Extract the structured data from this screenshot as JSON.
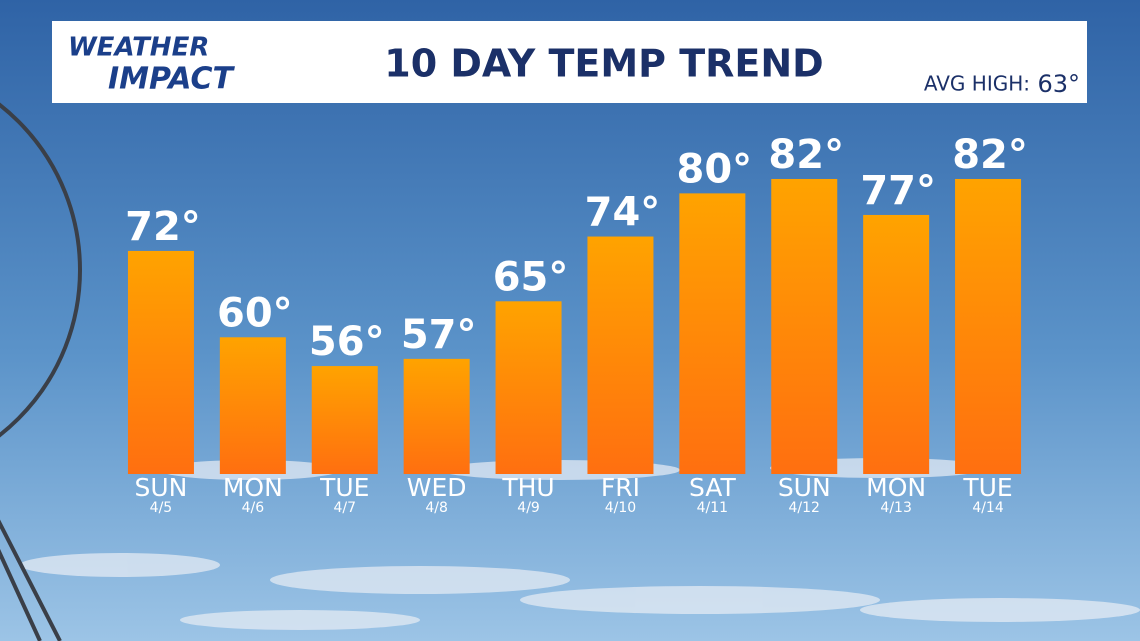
{
  "brand": {
    "line1": "WEATHER",
    "line2": "IMPACT"
  },
  "avg_label": "AVG HIGH:",
  "avg_value": "63°",
  "chart_data": {
    "type": "bar",
    "title": "10 DAY TEMP TREND",
    "categories": [
      "SUN",
      "MON",
      "TUE",
      "WED",
      "THU",
      "FRI",
      "SAT",
      "SUN",
      "MON",
      "TUE"
    ],
    "dates": [
      "4/5",
      "4/6",
      "4/7",
      "4/8",
      "4/9",
      "4/10",
      "4/11",
      "4/12",
      "4/13",
      "4/14"
    ],
    "values": [
      72,
      60,
      56,
      57,
      65,
      74,
      80,
      82,
      77,
      82
    ],
    "value_labels": [
      "72°",
      "60°",
      "56°",
      "57°",
      "65°",
      "74°",
      "80°",
      "82°",
      "77°",
      "82°"
    ],
    "color": "#ff8a00",
    "ylim": [
      41,
      87
    ]
  }
}
